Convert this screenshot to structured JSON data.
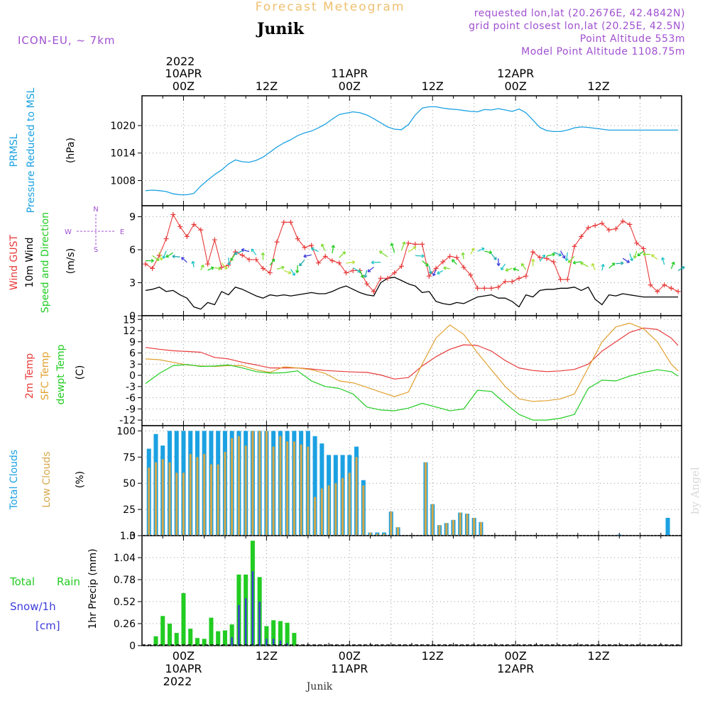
{
  "header": {
    "title": "Forecast Meteogram",
    "location": "Junik",
    "model": "ICON-EU, ~ 7km",
    "requested": "requested lon,lat (20.2676E, 42.4842N)",
    "gridpoint": "grid point closest lon,lat (20.25E, 42.5N)",
    "point_alt": "Point Altitude 553m",
    "model_alt": "Model Point Altitude 1108.75m",
    "watermark": "by Angel",
    "footer_location": "Junik"
  },
  "time_axis": {
    "top_year": "2022",
    "labels": [
      {
        "x": 0,
        "line1": "10APR",
        "line2": "00Z"
      },
      {
        "x": 12,
        "line1": "",
        "line2": "12Z"
      },
      {
        "x": 24,
        "line1": "11APR",
        "line2": "00Z"
      },
      {
        "x": 36,
        "line1": "",
        "line2": "12Z"
      },
      {
        "x": 48,
        "line1": "12APR",
        "line2": "00Z"
      },
      {
        "x": 60,
        "line1": "",
        "line2": "12Z"
      }
    ],
    "bottom_year": "2022"
  },
  "colors": {
    "pressure": "#1ba1e2",
    "gust": "#e83a3a",
    "wind10m": "#000000",
    "t2m": "#e83a3a",
    "sfc": "#e0a030",
    "dewpt": "#22cc22",
    "total_clouds": "#1ba1e2",
    "low_clouds": "#d4a84a",
    "rain": "#22cc22",
    "snow": "#3c3cdc",
    "meta": "#a050d0",
    "title": "#f0c070"
  },
  "chart_data": [
    {
      "type": "line",
      "name": "pressure",
      "ylabel_left": "PRMSL",
      "ylabel_left2": "Pressure Reduced to MSL",
      "unit": "(hPa)",
      "ylim": [
        1002.5,
        1026.5
      ],
      "yticks": [
        1008,
        1014,
        1020
      ],
      "x": [
        -5.5,
        -4.5,
        -3.5,
        -2.5,
        -1.5,
        -0.5,
        0.5,
        1.5,
        2.5,
        3.5,
        4.5,
        5.5,
        6.5,
        7.5,
        8.5,
        9.5,
        10.5,
        11.5,
        12.5,
        13.5,
        14.5,
        15.5,
        16.5,
        17.5,
        18.5,
        19.5,
        20.5,
        21.5,
        22.5,
        23.5,
        24.5,
        25.5,
        26.5,
        27.5,
        28.5,
        29.5,
        30.5,
        31.5,
        32.5,
        33.5,
        34.5,
        35.5,
        36.5,
        37.5,
        38.5,
        39.5,
        40.5,
        41.5,
        42.5,
        43.5,
        44.5,
        45.5,
        46.5,
        47.5,
        48.5,
        49.5,
        50.5,
        51.5,
        52.5,
        53.5,
        54.5,
        55.5,
        56.5,
        57.5,
        58.5,
        59.5,
        60.5,
        61.5,
        62.5,
        63.5,
        64.5,
        65.5,
        66.5,
        67.5,
        68.5,
        69.5,
        70.5,
        71.5
      ],
      "values": [
        1005.8,
        1005.9,
        1005.8,
        1005.6,
        1005.1,
        1004.9,
        1004.9,
        1005.2,
        1006.8,
        1008.1,
        1009.3,
        1010.3,
        1011.6,
        1012.5,
        1012.1,
        1012.0,
        1012.4,
        1013.1,
        1014.2,
        1015.3,
        1016.2,
        1016.9,
        1017.8,
        1018.4,
        1018.8,
        1019.5,
        1020.3,
        1021.4,
        1022.4,
        1022.7,
        1023.0,
        1022.8,
        1022.3,
        1021.5,
        1020.6,
        1019.7,
        1019.2,
        1019.1,
        1020.2,
        1022.3,
        1023.8,
        1024.1,
        1024.1,
        1023.8,
        1023.6,
        1023.5,
        1023.3,
        1023.1,
        1023.0,
        1023.5,
        1023.4,
        1023.7,
        1023.4,
        1023.1,
        1023.6,
        1022.8,
        1021.2,
        1019.6,
        1018.9,
        1018.7,
        1018.7,
        1019.0,
        1019.5,
        1019.7,
        1019.6,
        1019.4,
        1019.2,
        1019.0,
        1019.0,
        1019.0,
        1019.0,
        1019.0,
        1019.0,
        1019.0,
        1019.0,
        1019.0,
        1019.0,
        1019.0
      ]
    },
    {
      "type": "line",
      "name": "wind",
      "ylabel_a": "Wind GUST",
      "ylabel_b": "10m Wind",
      "ylabel_c": "Speed and Direction",
      "unit": "(m/s)",
      "compass": {
        "n": "N",
        "s": "S",
        "w": "W",
        "e": "E"
      },
      "ylim": [
        0,
        10
      ],
      "yticks": [
        0,
        3,
        6,
        9
      ],
      "x": [
        -5.5,
        -4.5,
        -3.5,
        -2.5,
        -1.5,
        -0.5,
        0.5,
        1.5,
        2.5,
        3.5,
        4.5,
        5.5,
        6.5,
        7.5,
        8.5,
        9.5,
        10.5,
        11.5,
        12.5,
        13.5,
        14.5,
        15.5,
        16.5,
        17.5,
        18.5,
        19.5,
        20.5,
        21.5,
        22.5,
        23.5,
        24.5,
        25.5,
        26.5,
        27.5,
        28.5,
        29.5,
        30.5,
        31.5,
        32.5,
        33.5,
        34.5,
        35.5,
        36.5,
        37.5,
        38.5,
        39.5,
        40.5,
        41.5,
        42.5,
        43.5,
        44.5,
        45.5,
        46.5,
        47.5,
        48.5,
        49.5,
        50.5,
        51.5,
        52.5,
        53.5,
        54.5,
        55.5,
        56.5,
        57.5,
        58.5,
        59.5,
        60.5,
        61.5,
        62.5,
        63.5,
        64.5,
        65.5,
        66.5,
        67.5,
        68.5,
        69.5,
        70.5,
        71.5
      ],
      "gust": [
        4.7,
        4.3,
        5.5,
        7.0,
        9.2,
        8.1,
        7.2,
        8.3,
        7.8,
        4.7,
        6.9,
        4.4,
        4.6,
        5.8,
        5.5,
        5.1,
        5.1,
        4.3,
        3.9,
        6.7,
        8.5,
        8.5,
        7.0,
        6.2,
        6.4,
        4.8,
        5.4,
        5.0,
        4.8,
        3.9,
        4.1,
        4.1,
        2.9,
        2.2,
        3.4,
        3.4,
        3.9,
        4.5,
        6.6,
        6.5,
        6.5,
        3.6,
        4.3,
        4.9,
        5.4,
        5.3,
        4.4,
        3.7,
        2.5,
        2.5,
        2.5,
        2.6,
        3.1,
        3.1,
        3.4,
        3.6,
        5.8,
        5.3,
        5.2,
        4.9,
        3.3,
        3.3,
        6.3,
        7.2,
        8.0,
        8.2,
        8.4,
        7.8,
        7.9,
        8.6,
        8.3,
        6.6,
        6.1,
        2.8,
        2.2,
        2.8,
        2.5,
        2.2
      ],
      "wind10m": [
        2.3,
        2.4,
        2.6,
        2.2,
        2.3,
        1.9,
        1.6,
        0.8,
        0.6,
        1.2,
        1.0,
        2.2,
        1.9,
        2.6,
        2.4,
        2.1,
        1.8,
        1.6,
        1.9,
        1.8,
        1.9,
        1.8,
        1.9,
        2.0,
        2.1,
        2.0,
        2.0,
        2.2,
        2.5,
        2.7,
        2.4,
        2.1,
        1.9,
        1.8,
        3.0,
        3.4,
        3.5,
        3.2,
        2.9,
        2.7,
        2.1,
        2.2,
        1.3,
        1.1,
        1.0,
        1.2,
        1.1,
        1.4,
        1.7,
        1.8,
        1.9,
        1.6,
        1.6,
        1.3,
        0.8,
        1.9,
        1.7,
        2.3,
        2.4,
        2.4,
        2.5,
        2.5,
        2.6,
        2.3,
        2.6,
        1.5,
        1.0,
        1.9,
        1.8,
        2.0,
        1.9,
        1.8,
        1.7,
        1.7,
        1.7,
        1.7,
        1.7,
        1.7
      ]
    },
    {
      "type": "line",
      "name": "temperature",
      "ylabel_a": "2m Temp",
      "ylabel_b": "SFC Temp",
      "ylabel_c": "dewpt Temp",
      "unit": "(C)",
      "ylim": [
        -13.5,
        16
      ],
      "yticks": [
        -12,
        -9,
        -6,
        -3,
        0,
        3,
        6,
        9,
        12,
        15
      ],
      "x": [
        -5.5,
        -3.5,
        -1.5,
        0.5,
        2.5,
        4.5,
        6.5,
        8.5,
        10.5,
        12.5,
        14.5,
        16.5,
        18.5,
        20.5,
        22.5,
        24.5,
        26.5,
        28.5,
        30.5,
        32.5,
        34.5,
        36.5,
        38.5,
        40.5,
        42.5,
        44.5,
        46.5,
        48.5,
        50.5,
        52.5,
        54.5,
        56.5,
        58.5,
        60.5,
        62.5,
        64.5,
        66.5,
        68.5,
        70.5,
        71.5
      ],
      "t2m": [
        7.5,
        7.0,
        6.6,
        6.4,
        6.2,
        4.8,
        4.4,
        3.5,
        2.8,
        2.0,
        2.0,
        2.0,
        1.7,
        1.3,
        1.1,
        0.9,
        0.8,
        0.1,
        -1.0,
        -0.6,
        2.5,
        5.0,
        7.0,
        8.2,
        8.0,
        6.5,
        4.0,
        2.0,
        1.3,
        1.0,
        1.2,
        1.6,
        3.0,
        6.5,
        9.0,
        11.5,
        12.7,
        12.3,
        10.0,
        8.0
      ],
      "sfc": [
        4.4,
        4.2,
        3.5,
        2.8,
        2.5,
        2.4,
        2.6,
        2.6,
        1.5,
        0.8,
        2.3,
        2.0,
        1.5,
        0.5,
        -1.5,
        -2.0,
        -3.2,
        -4.5,
        -5.7,
        -4.5,
        3.0,
        10.0,
        13.5,
        11.0,
        6.0,
        1.5,
        -3.0,
        -6.3,
        -7.0,
        -6.8,
        -6.3,
        -5.0,
        2.0,
        9.0,
        13.0,
        14.0,
        12.5,
        9.0,
        3.0,
        1.2
      ],
      "dewpt": [
        -2.2,
        0.5,
        2.6,
        2.9,
        2.4,
        2.5,
        2.8,
        2.0,
        1.0,
        0.6,
        0.7,
        1.2,
        -1.5,
        -3.0,
        -3.5,
        -5.0,
        -8.5,
        -9.3,
        -9.5,
        -8.8,
        -7.5,
        -8.5,
        -9.5,
        -9.0,
        -4.0,
        -4.3,
        -7.5,
        -10.5,
        -12.0,
        -12.0,
        -11.5,
        -10.5,
        -3.5,
        -1.3,
        -1.5,
        -0.2,
        0.8,
        1.5,
        1.0,
        -0.2
      ]
    },
    {
      "type": "bar",
      "name": "clouds",
      "ylabel_a": "Total Clouds",
      "ylabel_b": "Low Clouds",
      "unit": "(%)",
      "ylim": [
        0,
        105
      ],
      "yticks": [
        0,
        25,
        50,
        75,
        100
      ],
      "x": [
        -5,
        -4,
        -3,
        -2,
        -1,
        0,
        1,
        2,
        3,
        4,
        5,
        6,
        7,
        8,
        9,
        10,
        11,
        12,
        13,
        14,
        15,
        16,
        17,
        18,
        19,
        20,
        21,
        22,
        23,
        24,
        25,
        26,
        27,
        28,
        29,
        30,
        31,
        32,
        33,
        34,
        35,
        36,
        37,
        38,
        39,
        40,
        41,
        42,
        43,
        44,
        45,
        46,
        47,
        48,
        49,
        50,
        51,
        52,
        53,
        54,
        55,
        56,
        57,
        58,
        59,
        60,
        61,
        62,
        63,
        64,
        65,
        66,
        67,
        68,
        69,
        70,
        71
      ],
      "total": [
        83,
        97,
        86,
        100,
        100,
        100,
        100,
        100,
        100,
        100,
        100,
        100,
        100,
        100,
        100,
        100,
        100,
        100,
        100,
        100,
        100,
        100,
        100,
        100,
        95,
        88,
        77,
        77,
        77,
        77,
        85,
        53,
        3,
        3,
        3,
        23,
        8,
        0,
        0,
        0,
        70,
        30,
        10,
        12,
        15,
        22,
        21,
        17,
        13,
        0,
        0,
        0,
        0,
        0,
        0,
        0,
        0,
        0,
        0,
        0,
        0,
        0,
        0,
        0,
        0,
        0,
        0,
        0,
        1,
        0,
        0,
        0,
        0,
        0,
        0,
        17,
        0
      ],
      "low": [
        65,
        70,
        73,
        70,
        60,
        60,
        78,
        75,
        78,
        68,
        68,
        80,
        93,
        95,
        86,
        100,
        100,
        100,
        85,
        95,
        90,
        90,
        87,
        85,
        37,
        45,
        48,
        50,
        55,
        60,
        75,
        48,
        3,
        2,
        2,
        23,
        8,
        0,
        0,
        0,
        70,
        30,
        10,
        12,
        15,
        22,
        21,
        17,
        13,
        0,
        0,
        0,
        0,
        0,
        0,
        0,
        0,
        0,
        0,
        0,
        0,
        0,
        0,
        0,
        0,
        0,
        0,
        0,
        0,
        0,
        0,
        0,
        0,
        0,
        0,
        0,
        0
      ]
    },
    {
      "type": "bar",
      "name": "precip",
      "ylabel_a": "Total",
      "ylabel_a2": "Rain",
      "ylabel_b": "Snow/1h",
      "ylabel_b2": "[cm]",
      "ylabel_c": "1hr Precip (mm)",
      "ylim": [
        0,
        1.3
      ],
      "yticks": [
        0,
        0.26,
        0.52,
        0.78,
        1.04,
        1.3
      ],
      "x": [
        -4,
        -3,
        -2,
        -1,
        0,
        1,
        2,
        3,
        4,
        5,
        6,
        7,
        8,
        9,
        10,
        11,
        12,
        13,
        14,
        15,
        16,
        17
      ],
      "rain": [
        0.11,
        0.35,
        0.26,
        0.15,
        0.62,
        0.2,
        0.09,
        0.08,
        0.33,
        0.17,
        0.18,
        0.25,
        0.84,
        0.84,
        1.24,
        0.81,
        0.23,
        0.3,
        0.29,
        0.27,
        0.15,
        0.0
      ],
      "snow": [
        0,
        0,
        0,
        0,
        0,
        0,
        0,
        0,
        0,
        0,
        0,
        0.1,
        0.48,
        0.56,
        0.88,
        0.52,
        0.08,
        0.08,
        0.06,
        0.03,
        0,
        0
      ]
    }
  ]
}
